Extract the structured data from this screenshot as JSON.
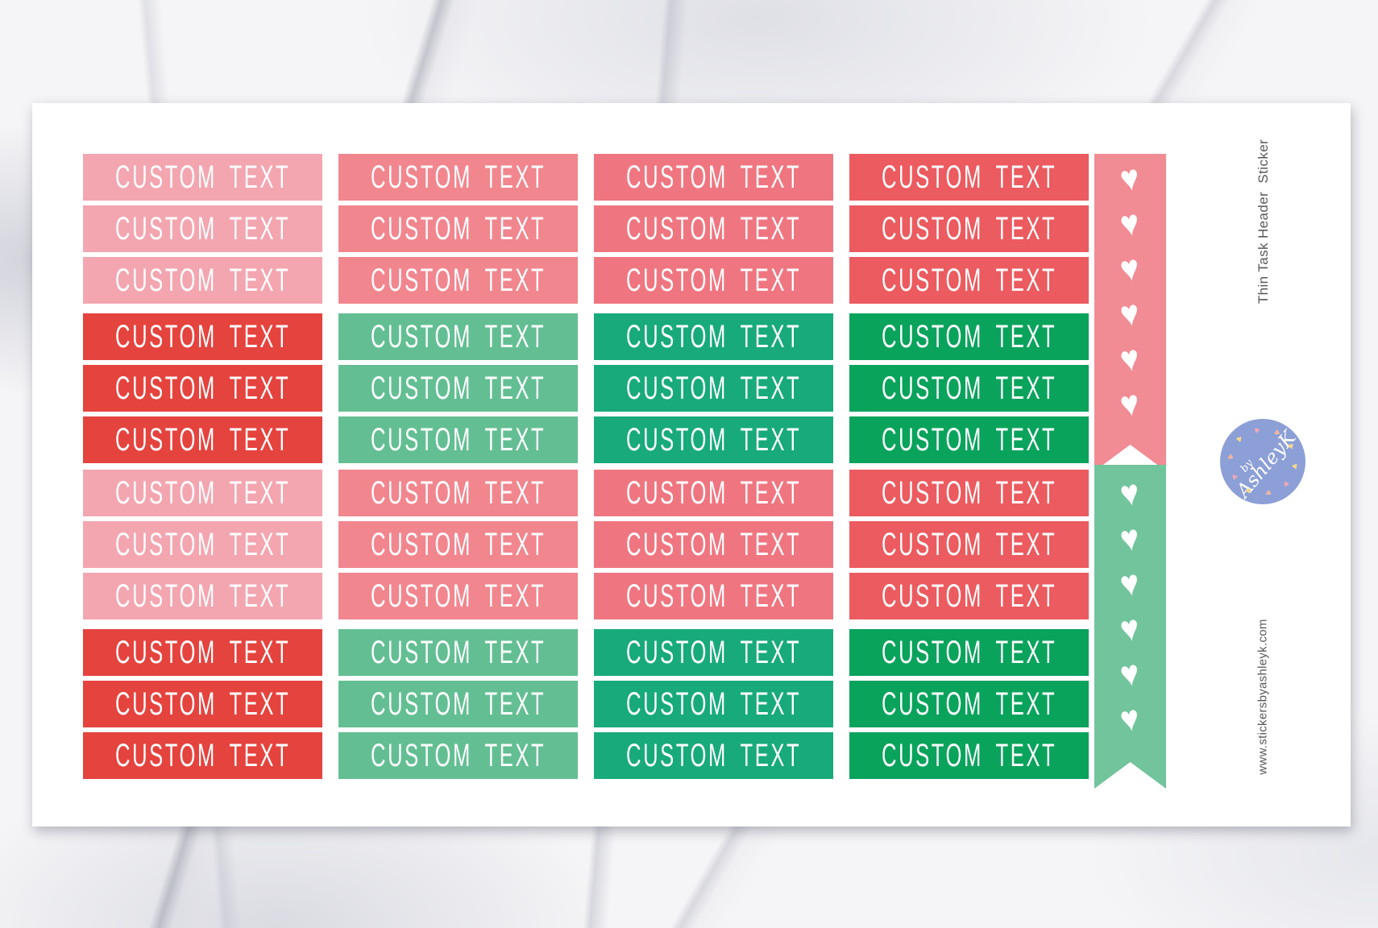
{
  "product": {
    "side_label": "Thin Task Header  Sticker",
    "website": "www.stickersbyashleyk.com"
  },
  "logo": {
    "line1": "by",
    "line2": "AshleyK",
    "circle_color": "#8C9FD6",
    "heart_colors": [
      "#F5D889",
      "#F0A9B6",
      "#F3B79E"
    ],
    "hearts_count": 10
  },
  "sticker_label": "CUSTOM TEXT",
  "palette": {
    "pink_light": "#F3A6B0",
    "pink_mid": "#F1868E",
    "pink_deep": "#EF7680",
    "coral": "#EB5B5F",
    "red": "#E5433E",
    "seafoam": "#63BF93",
    "emerald": "#18AA7B",
    "green": "#0AA35C",
    "strip_pink": "#F18B94",
    "strip_green": "#72C49C",
    "side_text": "#58595B",
    "sticker_text": "#FFFFFF"
  },
  "grid": {
    "row_patterns": [
      [
        "pink_light",
        "pink_mid",
        "pink_deep",
        "coral"
      ],
      [
        "pink_light",
        "pink_mid",
        "pink_deep",
        "coral"
      ],
      [
        "pink_light",
        "pink_mid",
        "pink_deep",
        "coral"
      ],
      [
        "red",
        "seafoam",
        "emerald",
        "green"
      ],
      [
        "red",
        "seafoam",
        "emerald",
        "green"
      ],
      [
        "red",
        "seafoam",
        "emerald",
        "green"
      ],
      [
        "pink_light",
        "pink_mid",
        "pink_deep",
        "coral"
      ],
      [
        "pink_light",
        "pink_mid",
        "pink_deep",
        "coral"
      ],
      [
        "pink_light",
        "pink_mid",
        "pink_deep",
        "coral"
      ],
      [
        "red",
        "seafoam",
        "emerald",
        "green"
      ],
      [
        "red",
        "seafoam",
        "emerald",
        "green"
      ],
      [
        "red",
        "seafoam",
        "emerald",
        "green"
      ]
    ]
  },
  "strips": {
    "hearts_per_strip": 6,
    "heart_glyph": "♥",
    "pink_color_key": "strip_pink",
    "green_color_key": "strip_green"
  }
}
